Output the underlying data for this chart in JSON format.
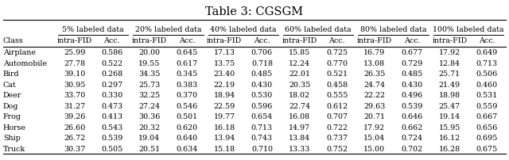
{
  "title": "Table 3: CGSGM",
  "col_groups": [
    "5% labeled data",
    "20% labeled data",
    "40% labeled data",
    "60% labeled data",
    "80% labeled data",
    "100% labeled data"
  ],
  "sub_cols": [
    "intra-FID",
    "Acc."
  ],
  "row_label": "Class",
  "classes": [
    "Airplane",
    "Automobile",
    "Bird",
    "Cat",
    "Deer",
    "Dog",
    "Frog",
    "Horse",
    "Ship",
    "Truck"
  ],
  "data": [
    [
      25.99,
      0.586,
      20.0,
      0.645,
      17.13,
      0.706,
      15.85,
      0.725,
      16.79,
      0.677,
      17.92,
      0.649
    ],
    [
      27.78,
      0.522,
      19.55,
      0.617,
      13.75,
      0.718,
      12.24,
      0.77,
      13.08,
      0.729,
      12.84,
      0.713
    ],
    [
      39.1,
      0.268,
      34.35,
      0.345,
      23.4,
      0.485,
      22.01,
      0.521,
      26.35,
      0.485,
      25.71,
      0.506
    ],
    [
      30.95,
      0.297,
      25.73,
      0.383,
      22.19,
      0.43,
      20.35,
      0.458,
      24.74,
      0.43,
      21.49,
      0.46
    ],
    [
      33.7,
      0.33,
      32.25,
      0.37,
      18.94,
      0.53,
      18.02,
      0.555,
      22.22,
      0.496,
      18.98,
      0.531
    ],
    [
      31.27,
      0.473,
      27.24,
      0.546,
      22.59,
      0.596,
      22.74,
      0.612,
      29.63,
      0.539,
      25.47,
      0.559
    ],
    [
      39.26,
      0.413,
      30.36,
      0.501,
      19.77,
      0.654,
      16.08,
      0.707,
      20.71,
      0.646,
      19.14,
      0.667
    ],
    [
      26.6,
      0.543,
      20.32,
      0.62,
      16.18,
      0.713,
      14.97,
      0.722,
      17.92,
      0.662,
      15.95,
      0.656
    ],
    [
      26.72,
      0.539,
      19.04,
      0.64,
      13.94,
      0.743,
      13.84,
      0.737,
      15.04,
      0.724,
      16.12,
      0.695
    ],
    [
      30.37,
      0.505,
      20.51,
      0.634,
      15.18,
      0.71,
      13.33,
      0.752,
      15.0,
      0.702,
      16.28,
      0.675
    ]
  ],
  "bg_color": "#ffffff",
  "text_color": "#000000",
  "font_size": 6.8,
  "title_font_size": 10.5,
  "fig_width": 6.4,
  "fig_height": 2.03,
  "dpi": 100
}
